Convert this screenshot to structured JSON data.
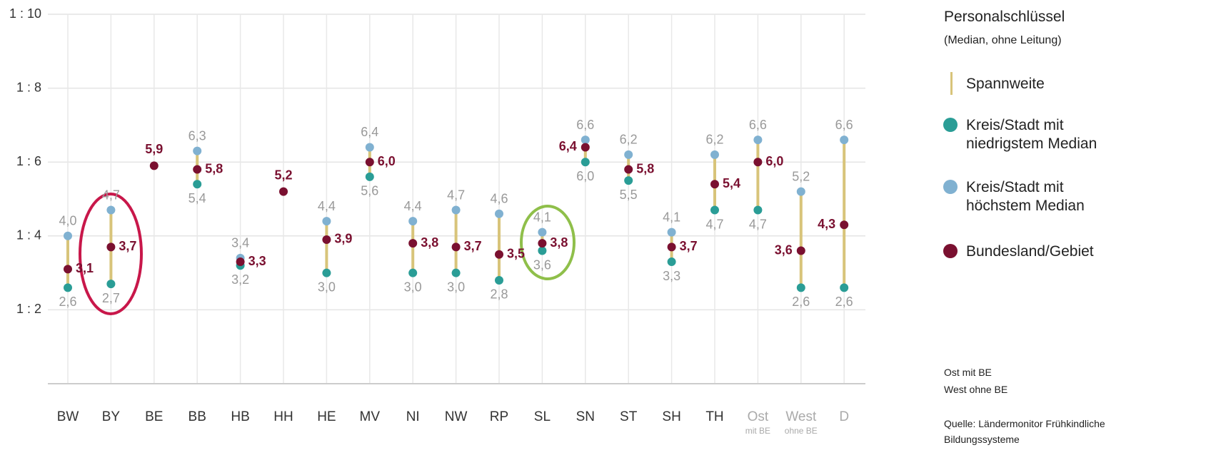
{
  "chart_data": {
    "type": "range-dot",
    "categories": [
      "BW",
      "BY",
      "BE",
      "BB",
      "HB",
      "HH",
      "HE",
      "MV",
      "NI",
      "NW",
      "RP",
      "SL",
      "SN",
      "ST",
      "SH",
      "TH",
      "Ost",
      "West",
      "D"
    ],
    "category_sublabels": [
      null,
      null,
      null,
      null,
      null,
      null,
      null,
      null,
      null,
      null,
      null,
      null,
      null,
      null,
      null,
      null,
      "mit BE",
      "ohne BE",
      null
    ],
    "ylim": [
      0,
      10
    ],
    "yticks": [
      {
        "value": 2,
        "label": "1 : 2"
      },
      {
        "value": 4,
        "label": "1 : 4"
      },
      {
        "value": 6,
        "label": "1 : 6"
      },
      {
        "value": 8,
        "label": "1 : 8"
      },
      {
        "value": 10,
        "label": "1 : 10"
      }
    ],
    "grid": true,
    "legend_title": "Personalschlüssel",
    "legend_subtitle": "(Median, ohne Leitung)",
    "range_label": "Spannweite",
    "range_color": "#d8c47a",
    "series": [
      {
        "name": "Kreis/Stadt mit niedrigstem Median",
        "color": "#2a9d96",
        "values": [
          2.6,
          2.7,
          null,
          5.4,
          3.2,
          null,
          3.0,
          5.6,
          3.0,
          3.0,
          2.8,
          3.6,
          6.0,
          5.5,
          3.3,
          4.7,
          4.7,
          2.6,
          2.6
        ],
        "value_labels": [
          "2,6",
          "2,7",
          null,
          "5,4",
          "3,2",
          null,
          "3,0",
          "5,6",
          "3,0",
          "3,0",
          "2,8",
          "3,6",
          "6,0",
          "5,5",
          "3,3",
          "4,7",
          "4,7",
          "2,6",
          "2,6"
        ]
      },
      {
        "name": "Kreis/Stadt mit höchstem Median",
        "color": "#80b1d1",
        "values": [
          4.0,
          4.7,
          null,
          6.3,
          3.4,
          null,
          4.4,
          6.4,
          4.4,
          4.7,
          4.6,
          4.1,
          6.6,
          6.2,
          4.1,
          6.2,
          6.6,
          5.2,
          6.6
        ],
        "value_labels": [
          "4,0",
          "4,7",
          null,
          "6,3",
          "3,4",
          null,
          "4,4",
          "6,4",
          "4,4",
          "4,7",
          "4,6",
          "4,1",
          "6,6",
          "6,2",
          "4,1",
          "6,2",
          "6,6",
          "5,2",
          "6,6"
        ]
      },
      {
        "name": "Bundesland/Gebiet",
        "color": "#7a1030",
        "values": [
          3.1,
          3.7,
          5.9,
          5.8,
          3.3,
          5.2,
          3.9,
          6.0,
          3.8,
          3.7,
          3.5,
          3.8,
          6.4,
          5.8,
          3.7,
          5.4,
          6.0,
          3.6,
          4.3
        ],
        "value_labels": [
          "3,1",
          "3,7",
          "5,9",
          "5,8",
          "3,3",
          "5,2",
          "3,9",
          "6,0",
          "3,8",
          "3,7",
          "3,5",
          "3,8",
          "6,4",
          "5,8",
          "3,7",
          "5,4",
          "6,0",
          "3,6",
          "4,3"
        ]
      }
    ],
    "notes": [
      "Ost mit BE",
      "West ohne BE"
    ],
    "source": "Quelle: Ländermonitor Frühkindliche Bildungssysteme"
  }
}
